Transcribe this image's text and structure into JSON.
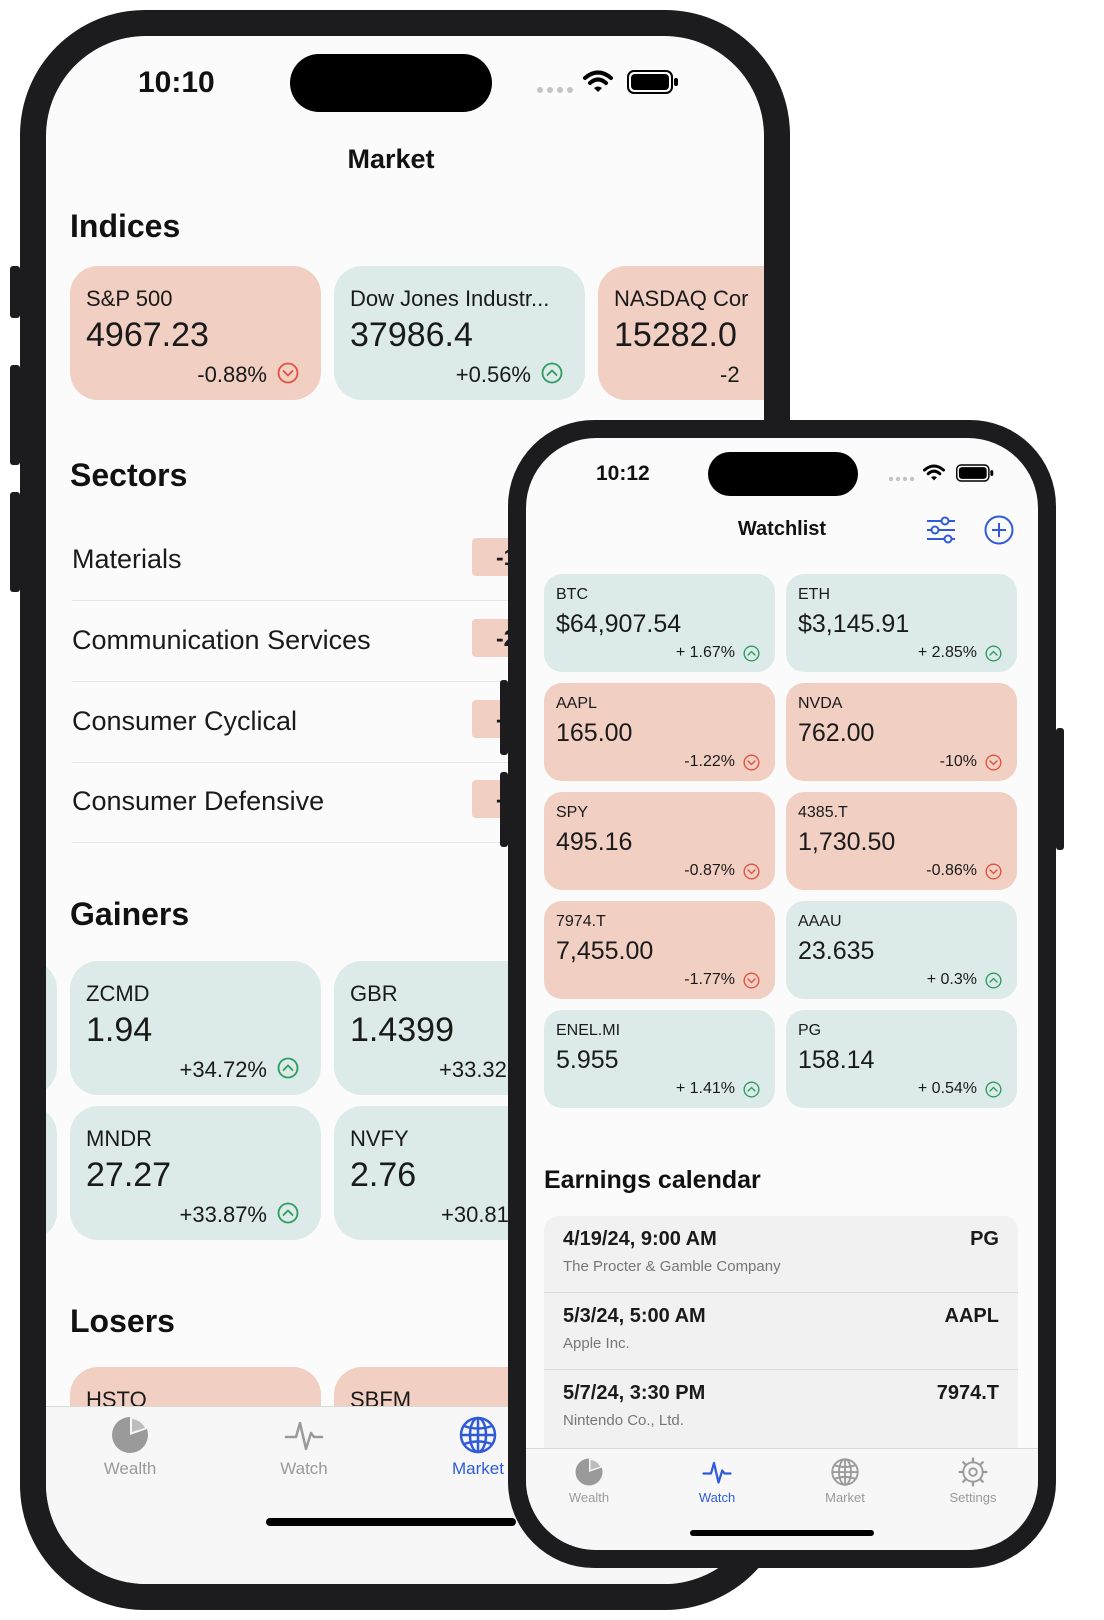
{
  "colors": {
    "red_card": "#f1cfc2",
    "green_card": "#dcebea",
    "up": "#2e9c5e",
    "down": "#e0523f",
    "accent": "#2f5bd9"
  },
  "phone_market": {
    "status_time": "10:10",
    "title": "Market",
    "indices_title": "Indices",
    "indices": [
      {
        "name": "S&P 500",
        "value": "4967.23",
        "change": "-0.88%",
        "direction": "down"
      },
      {
        "name": "Dow Jones Industr...",
        "value": "37986.4",
        "change": "+0.56%",
        "direction": "up"
      },
      {
        "name": "NASDAQ Cor",
        "value": "15282.0",
        "change": "-2",
        "direction": "down"
      }
    ],
    "sectors_title": "Sectors",
    "sectors": [
      {
        "name": "Materials",
        "change": "-1.1"
      },
      {
        "name": "Communication Services",
        "change": "-2.6"
      },
      {
        "name": "Consumer Cyclical",
        "change": "-1.4"
      },
      {
        "name": "Consumer Defensive",
        "change": "-0.1"
      }
    ],
    "gainers_title": "Gainers",
    "gainers": [
      {
        "symbol": "ZCMD",
        "price": "1.94",
        "change": "+34.72%"
      },
      {
        "symbol": "GBR",
        "price": "1.4399",
        "change": "+33.32"
      },
      {
        "symbol": "MNDR",
        "price": "27.27",
        "change": "+33.87%"
      },
      {
        "symbol": "NVFY",
        "price": "2.76",
        "change": "+30.81"
      }
    ],
    "losers_title": "Losers",
    "losers": [
      {
        "symbol": "HSTO"
      },
      {
        "symbol": "SBFM"
      }
    ],
    "tabs": [
      {
        "label": "Wealth",
        "icon": "pie-chart-icon"
      },
      {
        "label": "Watch",
        "icon": "waveform-icon"
      },
      {
        "label": "Market",
        "icon": "globe-icon",
        "active": true
      }
    ]
  },
  "phone_watchlist": {
    "status_time": "10:12",
    "title": "Watchlist",
    "items": [
      {
        "symbol": "BTC",
        "price": "$64,907.54",
        "change": "+ 1.67%",
        "direction": "up"
      },
      {
        "symbol": "ETH",
        "price": "$3,145.91",
        "change": "+ 2.85%",
        "direction": "up"
      },
      {
        "symbol": "AAPL",
        "price": "165.00",
        "change": "-1.22%",
        "direction": "down"
      },
      {
        "symbol": "NVDA",
        "price": "762.00",
        "change": "-10%",
        "direction": "down"
      },
      {
        "symbol": "SPY",
        "price": "495.16",
        "change": "-0.87%",
        "direction": "down"
      },
      {
        "symbol": "4385.T",
        "price": "1,730.50",
        "change": "-0.86%",
        "direction": "down"
      },
      {
        "symbol": "7974.T",
        "price": "7,455.00",
        "change": "-1.77%",
        "direction": "down"
      },
      {
        "symbol": "AAAU",
        "price": "23.635",
        "change": "+ 0.3%",
        "direction": "up"
      },
      {
        "symbol": "ENEL.MI",
        "price": "5.955",
        "change": "+ 1.41%",
        "direction": "up"
      },
      {
        "symbol": "PG",
        "price": "158.14",
        "change": "+ 0.54%",
        "direction": "up"
      }
    ],
    "earnings_title": "Earnings calendar",
    "earnings": [
      {
        "datetime": "4/19/24, 9:00 AM",
        "company": "The Procter & Gamble Company",
        "ticker": "PG"
      },
      {
        "datetime": "5/3/24, 5:00 AM",
        "company": "Apple Inc.",
        "ticker": "AAPL"
      },
      {
        "datetime": "5/7/24, 3:30 PM",
        "company": "Nintendo Co., Ltd.",
        "ticker": "7974.T"
      }
    ],
    "tabs": [
      {
        "label": "Wealth",
        "icon": "pie-chart-icon"
      },
      {
        "label": "Watch",
        "icon": "waveform-icon",
        "active": true
      },
      {
        "label": "Market",
        "icon": "globe-icon"
      },
      {
        "label": "Settings",
        "icon": "gear-icon"
      }
    ]
  }
}
